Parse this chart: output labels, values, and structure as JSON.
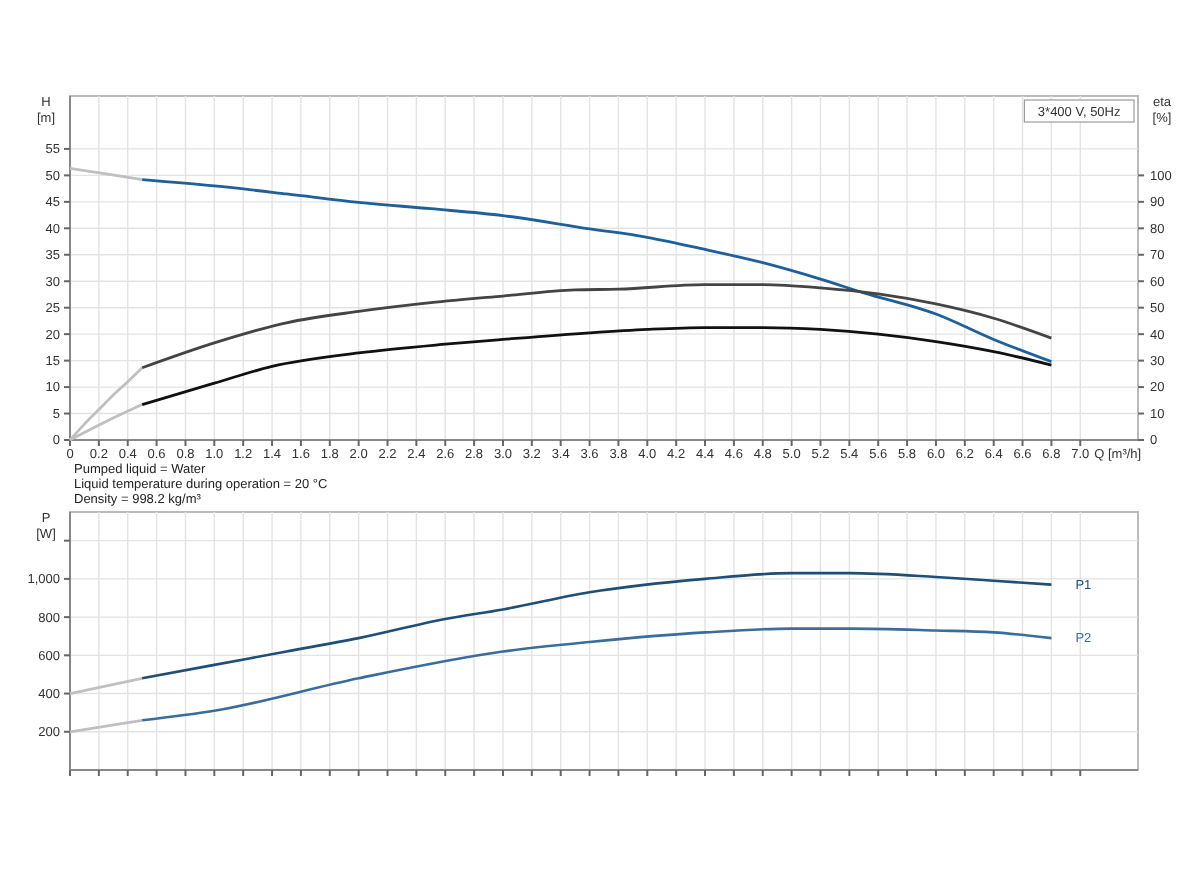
{
  "chart_data": [
    {
      "type": "line",
      "xlabel": "Q [m³/h]",
      "ylabel": "H [m]",
      "y2label": "eta [%]",
      "annotations": [
        "3*400 V, 50Hz",
        "Pumped liquid = Water",
        "Liquid temperature during operation = 20 °C",
        "Density = 998.2 kg/m³"
      ],
      "xlim": [
        0,
        7.4
      ],
      "xticks": [
        0,
        0.2,
        0.4,
        0.6,
        0.8,
        {
          "value": 1,
          "label": "1.0"
        },
        1.2,
        1.4,
        1.6,
        1.8,
        {
          "value": 2,
          "label": "2.0"
        },
        2.2,
        2.4,
        2.6,
        2.8,
        {
          "value": 3,
          "label": "3.0"
        },
        3.2,
        3.4,
        3.6,
        3.8,
        {
          "value": 4,
          "label": "4.0"
        },
        4.2,
        4.4,
        4.6,
        4.8,
        {
          "value": 5,
          "label": "5.0"
        },
        5.2,
        5.4,
        5.6,
        5.8,
        {
          "value": 6,
          "label": "6.0"
        },
        6.2,
        6.4,
        6.6,
        6.8,
        {
          "value": 7,
          "label": "7.0"
        }
      ],
      "ylim": [
        0,
        65
      ],
      "yticks": [
        0,
        5,
        10,
        15,
        20,
        25,
        30,
        35,
        40,
        45,
        50,
        55
      ],
      "y2lim": [
        0,
        130
      ],
      "y2ticks": [
        0,
        10,
        20,
        30,
        40,
        50,
        60,
        70,
        80,
        90,
        100
      ],
      "grid": true,
      "legend": false,
      "line_style": "solid",
      "marker": "none",
      "series": [
        {
          "color": "#c0c0c0",
          "x": [
            0,
            0.25,
            0.5
          ],
          "values": [
            51.3,
            50.3,
            49.2
          ]
        },
        {
          "color": "#1f5f9a",
          "x": [
            0.5,
            1,
            1.5,
            2,
            2.5,
            3,
            3.6,
            4,
            4.4,
            4.8,
            5.2,
            5.5,
            6,
            6.4,
            6.8
          ],
          "values": [
            49.2,
            48,
            46.5,
            44.9,
            43.7,
            42.4,
            39.9,
            38.3,
            36,
            33.5,
            30.4,
            27.8,
            23.8,
            19,
            14.8
          ]
        },
        {
          "color": "#c0c0c0",
          "axis": "y2",
          "x": [
            0,
            0.1,
            0.2,
            0.3,
            0.4,
            0.5
          ],
          "values": [
            0,
            6,
            11.5,
            17,
            22,
            27.3
          ]
        },
        {
          "color": "#444444",
          "axis": "y2",
          "x": [
            0.5,
            1,
            1.5,
            2,
            2.5,
            3,
            3.5,
            3.8,
            4.4,
            4.8,
            5.2,
            5.6,
            6,
            6.4,
            6.8
          ],
          "values": [
            27.3,
            36.7,
            44.3,
            48.6,
            51.9,
            54.4,
            56.7,
            57,
            58.7,
            58.7,
            57.5,
            55.2,
            51.4,
            46,
            38.5
          ]
        },
        {
          "color": "#c0c0c0",
          "axis": "y2",
          "x": [
            0,
            0.25,
            0.5
          ],
          "values": [
            0,
            7,
            13.4
          ]
        },
        {
          "color": "#111111",
          "axis": "y2",
          "x": [
            0.5,
            1,
            1.4,
            2,
            2.6,
            3,
            3.6,
            4,
            4.4,
            4.8,
            5.2,
            5.6,
            6,
            6.4,
            6.8
          ],
          "values": [
            13.4,
            21.5,
            27.8,
            32.9,
            36.2,
            38,
            40.5,
            41.8,
            42.5,
            42.5,
            41.8,
            40,
            37.2,
            33.4,
            28.3
          ]
        }
      ]
    },
    {
      "type": "line",
      "ylabel": "P [W]",
      "xlim": [
        0,
        7.4
      ],
      "xticks": [
        0,
        0.2,
        0.4,
        0.6,
        0.8,
        1,
        1.2,
        1.4,
        1.6,
        1.8,
        2,
        2.2,
        2.4,
        2.6,
        2.8,
        3,
        3.2,
        3.4,
        3.6,
        3.8,
        4,
        4.2,
        4.4,
        4.6,
        4.8,
        5,
        5.2,
        5.4,
        5.6,
        5.8,
        6,
        6.2,
        6.4,
        6.6,
        6.8,
        7
      ],
      "ylim": [
        0,
        1350
      ],
      "yticks": [
        200,
        400,
        600,
        800,
        {
          "value": 1000,
          "label": "1,000"
        },
        {
          "value": 1200,
          "label": null
        }
      ],
      "tick_labels": "y",
      "grid": true,
      "legend": false,
      "line_style": "solid",
      "marker": "none",
      "series": [
        {
          "color": "#c0c0c0",
          "x": [
            0,
            0.5
          ],
          "values": [
            400,
            480
          ]
        },
        {
          "name": "P1",
          "color": "#1f4e79",
          "x": [
            0.5,
            1,
            1.5,
            2,
            2.6,
            3,
            3.6,
            4.4,
            5,
            5.4,
            6,
            6.4,
            6.8
          ],
          "values": [
            480,
            550,
            620,
            690,
            790,
            840,
            930,
            1000,
            1030,
            1030,
            1010,
            990,
            970
          ]
        },
        {
          "color": "#c0c0c0",
          "x": [
            0,
            0.5
          ],
          "values": [
            200,
            260
          ]
        },
        {
          "name": "P2",
          "color": "#3a6d9c",
          "x": [
            0.5,
            1,
            2,
            3,
            3.6,
            4.4,
            5,
            5.4,
            6,
            6.4,
            6.8
          ],
          "values": [
            260,
            310,
            480,
            620,
            670,
            720,
            740,
            740,
            730,
            720,
            690
          ]
        }
      ]
    }
  ]
}
